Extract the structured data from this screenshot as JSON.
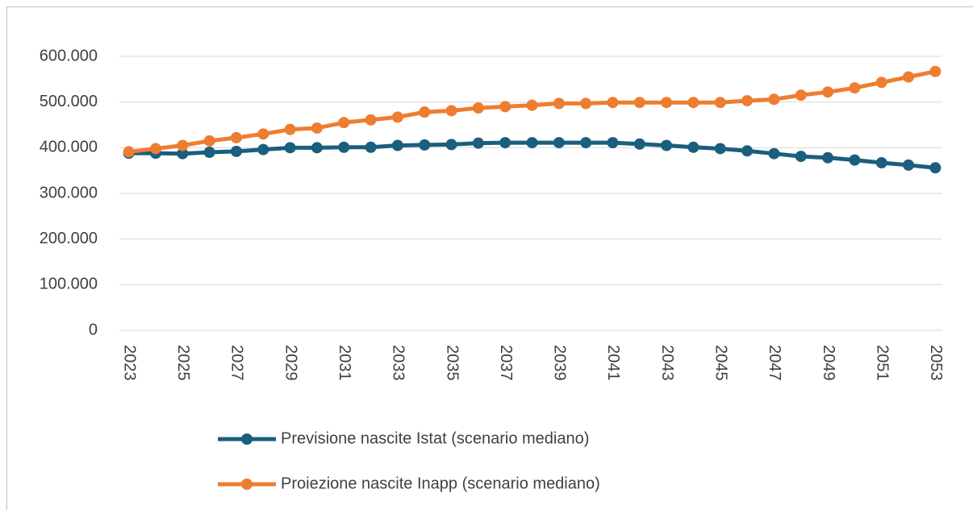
{
  "chart_data": {
    "type": "line",
    "categories": [
      "2023",
      null,
      "2025",
      null,
      "2027",
      null,
      "2029",
      null,
      "2031",
      null,
      "2033",
      null,
      "2035",
      null,
      "2037",
      null,
      "2039",
      null,
      "2041",
      null,
      "2043",
      null,
      "2045",
      null,
      "2047",
      null,
      "2049",
      null,
      "2051",
      null,
      "2053"
    ],
    "series": [
      {
        "name": "Previsione nascite Istat (scenario mediano)",
        "color": "#1b5e7e",
        "values": [
          388000,
          388000,
          387000,
          390000,
          392000,
          396000,
          400000,
          400000,
          401000,
          401000,
          405000,
          406000,
          407000,
          410000,
          411000,
          411000,
          411000,
          411000,
          411000,
          408000,
          405000,
          401000,
          398000,
          393000,
          387000,
          381000,
          378000,
          373000,
          367000,
          362000,
          356000
        ]
      },
      {
        "name": "Proiezione nascite Inapp (scenario mediano)",
        "color": "#ee7d31",
        "values": [
          391000,
          398000,
          405000,
          415000,
          422000,
          430000,
          440000,
          443000,
          455000,
          461000,
          467000,
          478000,
          481000,
          487000,
          490000,
          493000,
          497000,
          497000,
          499000,
          499000,
          499000,
          499000,
          499000,
          503000,
          506000,
          515000,
          522000,
          531000,
          543000,
          555000,
          567000
        ]
      }
    ],
    "ylim": [
      0,
      600000
    ],
    "yticks": [
      0,
      {
        "value": 100000,
        "label": "100.000"
      },
      {
        "value": 200000,
        "label": "200.000"
      },
      {
        "value": 300000,
        "label": "300.000"
      },
      {
        "value": 400000,
        "label": "400.000"
      },
      {
        "value": 500000,
        "label": "500.000"
      },
      {
        "value": 600000,
        "label": "600.000"
      }
    ],
    "grid": true,
    "legend": "bottom"
  }
}
